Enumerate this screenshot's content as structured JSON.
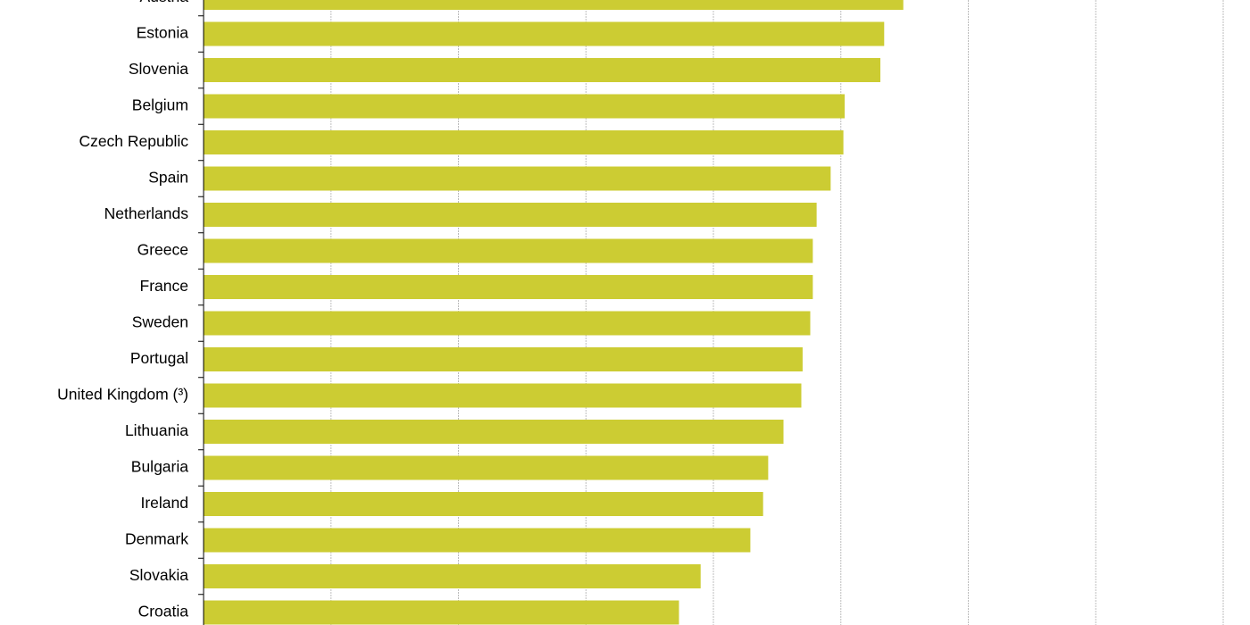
{
  "chart_data": {
    "type": "hbar",
    "categories": [
      "Austria",
      "Estonia",
      "Slovenia",
      "Belgium",
      "Czech Republic",
      "Spain",
      "Netherlands",
      "Greece",
      "France",
      "Sweden",
      "Portugal",
      "United Kingdom (³)",
      "Lithuania",
      "Bulgaria",
      "Ireland",
      "Denmark",
      "Slovakia",
      "Croatia"
    ],
    "values": [
      54.9,
      53.4,
      53.1,
      50.3,
      50.2,
      49.2,
      48.1,
      47.8,
      47.8,
      47.6,
      47.0,
      46.9,
      45.5,
      44.3,
      43.9,
      42.9,
      39.0,
      37.3
    ],
    "color": "#cccc33",
    "xlim": [
      0,
      80
    ],
    "xticks": [
      0,
      10,
      20,
      30,
      40,
      50,
      60,
      70,
      80
    ],
    "grid": true
  }
}
